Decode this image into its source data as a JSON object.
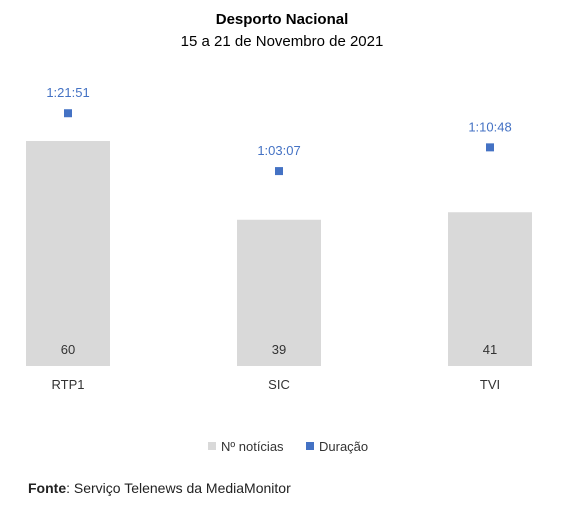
{
  "chart_data": {
    "type": "bar",
    "title": "Desporto Nacional",
    "subtitle": "15 a 21 de Novembro de 2021",
    "categories": [
      "RTP1",
      "SIC",
      "TVI"
    ],
    "series": [
      {
        "name": "Nº notícias",
        "kind": "bar",
        "color": "#D9D9D9",
        "values": [
          60,
          39,
          41
        ]
      },
      {
        "name": "Duração",
        "kind": "point",
        "color": "#4472C4",
        "values": [
          "1:21:51",
          "1:03:07",
          "1:10:48"
        ],
        "seconds": [
          4911,
          3787,
          4248
        ]
      }
    ],
    "legend": "bottom"
  },
  "source": {
    "label": "Fonte",
    "text": ": Serviço Telenews da MediaMonitor"
  }
}
